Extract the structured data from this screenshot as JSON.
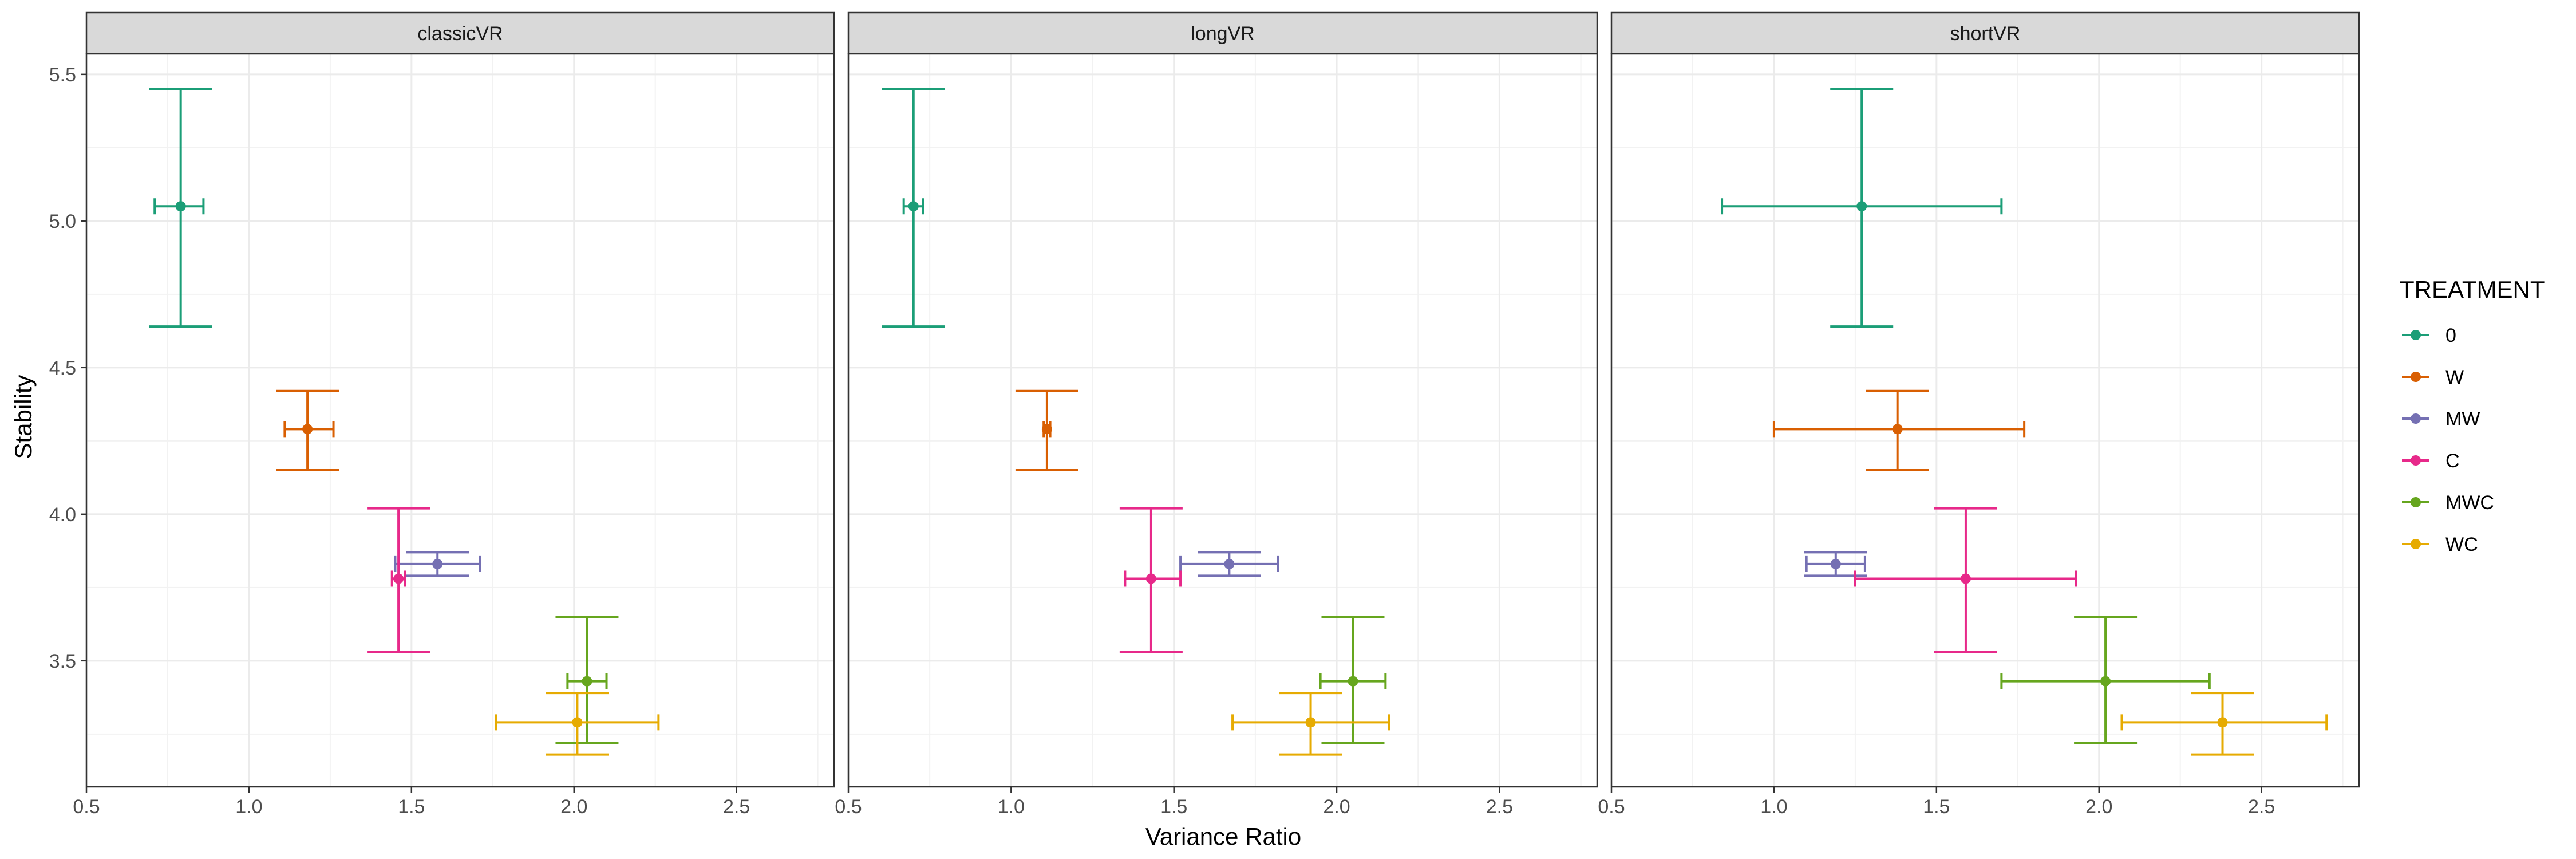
{
  "chart_data": {
    "type": "scatter",
    "xlabel": "Variance Ratio",
    "ylabel": "Stability",
    "xlim": [
      0.5,
      2.8
    ],
    "ylim": [
      3.07,
      5.57
    ],
    "x_ticks": [
      "0.5",
      "1.0",
      "1.5",
      "2.0",
      "2.5"
    ],
    "y_ticks": [
      "3.5",
      "4.0",
      "4.5",
      "5.0",
      "5.5"
    ],
    "grid": true,
    "legend": {
      "title": "TREATMENT",
      "position": "right"
    },
    "facets": [
      "classicVR",
      "longVR",
      "shortVR"
    ],
    "series": [
      {
        "name": "0",
        "color": "#1B9E77",
        "points": [
          {
            "facet": "classicVR",
            "x": 0.79,
            "y": 5.05,
            "xmin": 0.71,
            "xmax": 0.86,
            "ymin": 4.64,
            "ymax": 5.45
          },
          {
            "facet": "longVR",
            "x": 0.7,
            "y": 5.05,
            "xmin": 0.67,
            "xmax": 0.73,
            "ymin": 4.64,
            "ymax": 5.45
          },
          {
            "facet": "shortVR",
            "x": 1.27,
            "y": 5.05,
            "xmin": 0.84,
            "xmax": 1.7,
            "ymin": 4.64,
            "ymax": 5.45
          }
        ]
      },
      {
        "name": "W",
        "color": "#D95F02",
        "points": [
          {
            "facet": "classicVR",
            "x": 1.18,
            "y": 4.29,
            "xmin": 1.11,
            "xmax": 1.26,
            "ymin": 4.15,
            "ymax": 4.42
          },
          {
            "facet": "longVR",
            "x": 1.11,
            "y": 4.29,
            "xmin": 1.1,
            "xmax": 1.12,
            "ymin": 4.15,
            "ymax": 4.42
          },
          {
            "facet": "shortVR",
            "x": 1.38,
            "y": 4.29,
            "xmin": 1.0,
            "xmax": 1.77,
            "ymin": 4.15,
            "ymax": 4.42
          }
        ]
      },
      {
        "name": "MW",
        "color": "#7570B3",
        "points": [
          {
            "facet": "classicVR",
            "x": 1.58,
            "y": 3.83,
            "xmin": 1.45,
            "xmax": 1.71,
            "ymin": 3.79,
            "ymax": 3.87
          },
          {
            "facet": "longVR",
            "x": 1.67,
            "y": 3.83,
            "xmin": 1.52,
            "xmax": 1.82,
            "ymin": 3.79,
            "ymax": 3.87
          },
          {
            "facet": "shortVR",
            "x": 1.19,
            "y": 3.83,
            "xmin": 1.1,
            "xmax": 1.28,
            "ymin": 3.79,
            "ymax": 3.87
          }
        ]
      },
      {
        "name": "C",
        "color": "#E7298A",
        "points": [
          {
            "facet": "classicVR",
            "x": 1.46,
            "y": 3.78,
            "xmin": 1.44,
            "xmax": 1.48,
            "ymin": 3.53,
            "ymax": 4.02
          },
          {
            "facet": "longVR",
            "x": 1.43,
            "y": 3.78,
            "xmin": 1.35,
            "xmax": 1.52,
            "ymin": 3.53,
            "ymax": 4.02
          },
          {
            "facet": "shortVR",
            "x": 1.59,
            "y": 3.78,
            "xmin": 1.25,
            "xmax": 1.93,
            "ymin": 3.53,
            "ymax": 4.02
          }
        ]
      },
      {
        "name": "MWC",
        "color": "#66A61E",
        "points": [
          {
            "facet": "classicVR",
            "x": 2.04,
            "y": 3.43,
            "xmin": 1.98,
            "xmax": 2.1,
            "ymin": 3.22,
            "ymax": 3.65
          },
          {
            "facet": "longVR",
            "x": 2.05,
            "y": 3.43,
            "xmin": 1.95,
            "xmax": 2.15,
            "ymin": 3.22,
            "ymax": 3.65
          },
          {
            "facet": "shortVR",
            "x": 2.02,
            "y": 3.43,
            "xmin": 1.7,
            "xmax": 2.34,
            "ymin": 3.22,
            "ymax": 3.65
          }
        ]
      },
      {
        "name": "WC",
        "color": "#E6AB02",
        "points": [
          {
            "facet": "classicVR",
            "x": 2.01,
            "y": 3.29,
            "xmin": 1.76,
            "xmax": 2.26,
            "ymin": 3.18,
            "ymax": 3.39
          },
          {
            "facet": "longVR",
            "x": 1.92,
            "y": 3.29,
            "xmin": 1.68,
            "xmax": 2.16,
            "ymin": 3.18,
            "ymax": 3.39
          },
          {
            "facet": "shortVR",
            "x": 2.38,
            "y": 3.29,
            "xmin": 2.07,
            "xmax": 2.7,
            "ymin": 3.18,
            "ymax": 3.39
          }
        ]
      }
    ]
  }
}
